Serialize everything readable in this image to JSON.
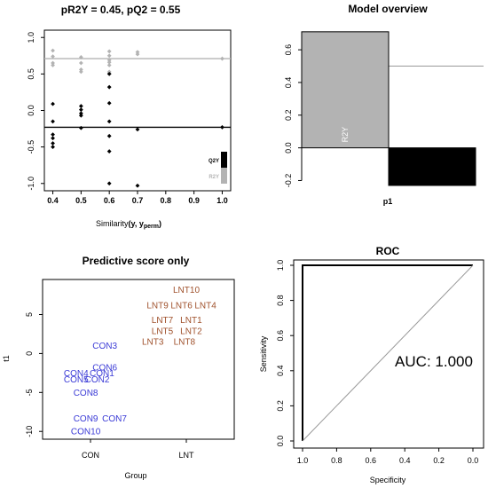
{
  "chart_data": [
    {
      "type": "scatter",
      "title": "pR2Y = 0.45, pQ2 = 0.55",
      "xlabel": "Similarity(y, yperm)",
      "xlabel_main": "Similarity",
      "xlabel_args": "(y, y",
      "xlabel_sub": "perm",
      "xlabel_close": ")",
      "ylabel": "",
      "xlim": [
        0.37,
        1.03
      ],
      "ylim": [
        -1.1,
        1.1
      ],
      "xticks": [
        0.4,
        0.5,
        0.6,
        0.7,
        0.8,
        0.9,
        1.0
      ],
      "xtick_labels": [
        "0.4",
        "0.5",
        "0.6",
        "0.7",
        "0.8",
        "0.9",
        "1.0"
      ],
      "yticks": [
        -1.0,
        -0.5,
        0.0,
        0.5,
        1.0
      ],
      "ytick_labels": [
        "-1.0",
        "-0.5",
        "0.0",
        "0.5",
        "1.0"
      ],
      "legend": {
        "position": "bottom-right",
        "items": [
          "Q2Y",
          "R2Y"
        ]
      },
      "hlines": [
        {
          "name": "R2Y",
          "y": 0.71,
          "color": "#b3b3b3"
        },
        {
          "name": "Q2Y",
          "y": -0.23,
          "color": "#000000"
        }
      ],
      "series": [
        {
          "name": "R2Y",
          "color": "#b3b3b3",
          "points": [
            [
              0.4,
              0.82
            ],
            [
              0.4,
              0.74
            ],
            [
              0.4,
              0.65
            ],
            [
              0.4,
              0.62
            ],
            [
              0.5,
              0.73
            ],
            [
              0.5,
              0.65
            ],
            [
              0.5,
              0.56
            ],
            [
              0.5,
              0.53
            ],
            [
              0.6,
              0.81
            ],
            [
              0.6,
              0.75
            ],
            [
              0.6,
              0.69
            ],
            [
              0.6,
              0.66
            ],
            [
              0.6,
              0.62
            ],
            [
              0.6,
              0.53
            ],
            [
              0.6,
              0.51
            ],
            [
              0.7,
              0.8
            ],
            [
              0.7,
              0.77
            ],
            [
              1.0,
              0.71
            ]
          ]
        },
        {
          "name": "Q2Y",
          "color": "#000000",
          "points": [
            [
              0.4,
              0.09
            ],
            [
              0.4,
              -0.15
            ],
            [
              0.4,
              -0.33
            ],
            [
              0.4,
              -0.38
            ],
            [
              0.4,
              -0.45
            ],
            [
              0.4,
              -0.5
            ],
            [
              0.5,
              0.06
            ],
            [
              0.5,
              0.01
            ],
            [
              0.5,
              -0.04
            ],
            [
              0.5,
              -0.07
            ],
            [
              0.5,
              -0.24
            ],
            [
              0.6,
              0.5
            ],
            [
              0.6,
              0.32
            ],
            [
              0.6,
              0.1
            ],
            [
              0.6,
              -0.15
            ],
            [
              0.6,
              -0.35
            ],
            [
              0.6,
              -0.56
            ],
            [
              0.6,
              -1.0
            ],
            [
              0.7,
              -0.26
            ],
            [
              0.7,
              -1.03
            ],
            [
              1.0,
              -0.23
            ]
          ]
        }
      ]
    },
    {
      "type": "bar",
      "title": "Model overview",
      "xlabel": "p1",
      "ylabel": "",
      "ylim": [
        -0.23,
        0.72
      ],
      "yticks": [
        -0.2,
        0.0,
        0.2,
        0.4,
        0.6
      ],
      "ytick_labels": [
        "-0.2",
        "0.0",
        "0.2",
        "0.4",
        "0.6"
      ],
      "hline": 0.5,
      "series": [
        {
          "name": "R2Y",
          "value": 0.71,
          "color": "#b3b3b3",
          "label": "R2Y"
        },
        {
          "name": "Q2Y",
          "value": -0.23,
          "color": "#000000"
        }
      ]
    },
    {
      "type": "scatter",
      "title": "Predictive score only",
      "xlabel": "Group",
      "ylabel": "t1",
      "xlim": [
        0.5,
        2.5
      ],
      "ylim": [
        -11,
        9.5
      ],
      "categories": [
        "CON",
        "LNT"
      ],
      "yticks": [
        -10,
        -5,
        0,
        5
      ],
      "ytick_labels": [
        "-10",
        "-5",
        "0",
        "5"
      ],
      "points": [
        {
          "label": "LNT10",
          "x": 2.0,
          "y": 8.2,
          "group": "LNT",
          "color": "#a0522d"
        },
        {
          "label": "LNT9",
          "x": 1.7,
          "y": 6.2,
          "group": "LNT",
          "color": "#a0522d"
        },
        {
          "label": "LNT6",
          "x": 1.95,
          "y": 6.2,
          "group": "LNT",
          "color": "#a0522d"
        },
        {
          "label": "LNT4",
          "x": 2.2,
          "y": 6.2,
          "group": "LNT",
          "color": "#a0522d"
        },
        {
          "label": "LNT7",
          "x": 1.75,
          "y": 4.3,
          "group": "LNT",
          "color": "#a0522d"
        },
        {
          "label": "LNT1",
          "x": 2.05,
          "y": 4.3,
          "group": "LNT",
          "color": "#a0522d"
        },
        {
          "label": "LNT5",
          "x": 1.75,
          "y": 2.9,
          "group": "LNT",
          "color": "#a0522d"
        },
        {
          "label": "LNT2",
          "x": 2.05,
          "y": 2.9,
          "group": "LNT",
          "color": "#a0522d"
        },
        {
          "label": "LNT3",
          "x": 1.65,
          "y": 1.5,
          "group": "LNT",
          "color": "#a0522d"
        },
        {
          "label": "LNT8",
          "x": 1.98,
          "y": 1.5,
          "group": "LNT",
          "color": "#a0522d"
        },
        {
          "label": "CON3",
          "x": 1.15,
          "y": 1.0,
          "group": "CON",
          "color": "#3a3ad6"
        },
        {
          "label": "CON6",
          "x": 1.15,
          "y": -1.8,
          "group": "CON",
          "color": "#3a3ad6"
        },
        {
          "label": "CON4",
          "x": 0.85,
          "y": -2.5,
          "group": "CON",
          "color": "#3a3ad6"
        },
        {
          "label": "CON1",
          "x": 1.12,
          "y": -2.5,
          "group": "CON",
          "color": "#3a3ad6"
        },
        {
          "label": "CON5",
          "x": 0.85,
          "y": -3.3,
          "group": "CON",
          "color": "#3a3ad6"
        },
        {
          "label": "CON2",
          "x": 1.07,
          "y": -3.3,
          "group": "CON",
          "color": "#3a3ad6"
        },
        {
          "label": "CON8",
          "x": 0.95,
          "y": -5.0,
          "group": "CON",
          "color": "#3a3ad6"
        },
        {
          "label": "CON9",
          "x": 0.95,
          "y": -8.3,
          "group": "CON",
          "color": "#3a3ad6"
        },
        {
          "label": "CON7",
          "x": 1.25,
          "y": -8.3,
          "group": "CON",
          "color": "#3a3ad6"
        },
        {
          "label": "CON10",
          "x": 0.95,
          "y": -10.0,
          "group": "CON",
          "color": "#3a3ad6"
        }
      ]
    },
    {
      "type": "line",
      "title": "ROC",
      "xlabel": "Specificity",
      "ylabel": "Sensitivity",
      "xlim": [
        1.0,
        0.0
      ],
      "ylim": [
        0.0,
        1.0
      ],
      "xticks": [
        1.0,
        0.8,
        0.6,
        0.4,
        0.2,
        0.0
      ],
      "xtick_labels": [
        "1.0",
        "0.8",
        "0.6",
        "0.4",
        "0.2",
        "0.0"
      ],
      "yticks": [
        0.0,
        0.2,
        0.4,
        0.6,
        0.8,
        1.0
      ],
      "ytick_labels": [
        "0.0",
        "0.2",
        "0.4",
        "0.6",
        "0.8",
        "1.0"
      ],
      "annotation": "AUC: 1.000",
      "series": [
        {
          "name": "ROC",
          "x": [
            1.0,
            1.0,
            0.0
          ],
          "y": [
            0.0,
            1.0,
            1.0
          ],
          "color": "#000000"
        },
        {
          "name": "diagonal",
          "x": [
            1.0,
            0.0
          ],
          "y": [
            0.0,
            1.0
          ],
          "color": "#999999"
        }
      ]
    }
  ]
}
